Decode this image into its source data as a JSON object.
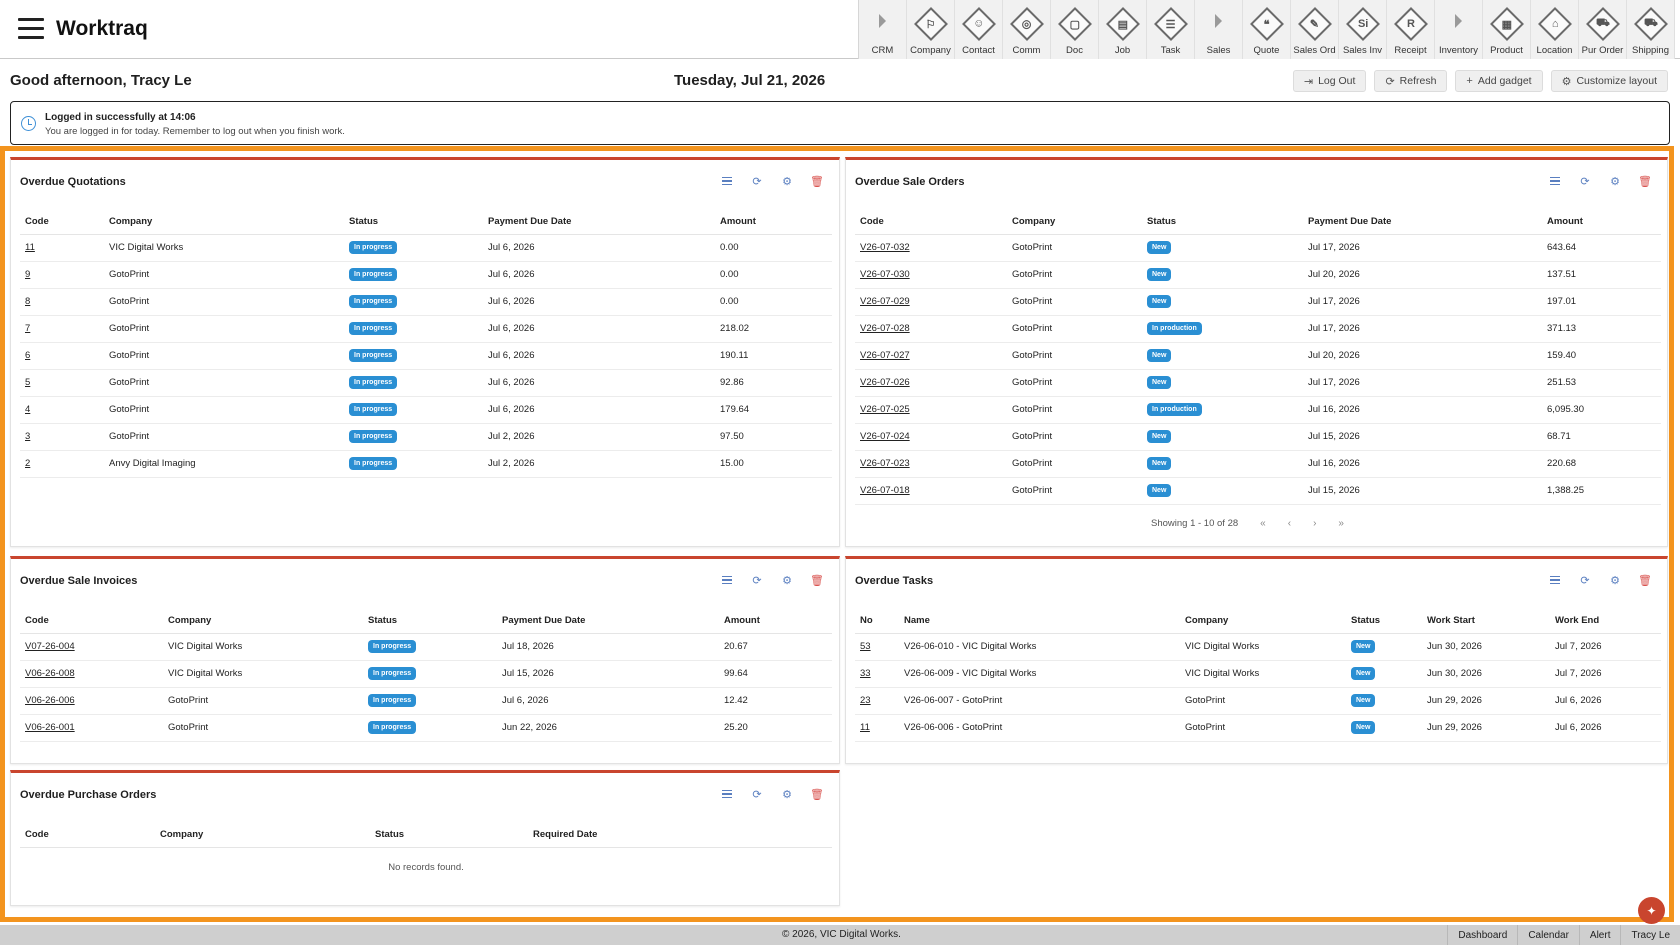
{
  "app": {
    "title": "Worktraq"
  },
  "modules": [
    {
      "label": "CRM",
      "icon": "chevron-right-icon",
      "section": true,
      "glyph": ""
    },
    {
      "label": "Company",
      "icon": "company-icon",
      "section": false,
      "glyph": "⚐"
    },
    {
      "label": "Contact",
      "icon": "contact-icon",
      "section": false,
      "glyph": "☺"
    },
    {
      "label": "Comm",
      "icon": "globe-icon",
      "section": false,
      "glyph": "◎"
    },
    {
      "label": "Doc",
      "icon": "document-icon",
      "section": false,
      "glyph": "▢"
    },
    {
      "label": "Job",
      "icon": "job-icon",
      "section": false,
      "glyph": "▤"
    },
    {
      "label": "Task",
      "icon": "task-icon",
      "section": false,
      "glyph": "☰"
    },
    {
      "label": "Sales",
      "icon": "chevron-right-icon",
      "section": true,
      "glyph": ""
    },
    {
      "label": "Quote",
      "icon": "quote-icon",
      "section": false,
      "glyph": "❝"
    },
    {
      "label": "Sales Ord",
      "icon": "sales-order-icon",
      "section": false,
      "glyph": "✎"
    },
    {
      "label": "Sales Inv",
      "icon": "sales-invoice-icon",
      "section": false,
      "glyph": "Si"
    },
    {
      "label": "Receipt",
      "icon": "receipt-icon",
      "section": false,
      "glyph": "R"
    },
    {
      "label": "Inventory",
      "icon": "chevron-right-icon",
      "section": true,
      "glyph": ""
    },
    {
      "label": "Product",
      "icon": "product-icon",
      "section": false,
      "glyph": "▦"
    },
    {
      "label": "Location",
      "icon": "location-icon",
      "section": false,
      "glyph": "⌂"
    },
    {
      "label": "Pur Order",
      "icon": "cart-icon",
      "section": false,
      "glyph": "⛟"
    },
    {
      "label": "Shipping",
      "icon": "shipping-icon",
      "section": false,
      "glyph": "⛟"
    }
  ],
  "greeting": "Good afternoon, Tracy Le",
  "date": "Tuesday, Jul 21, 2026",
  "toolbar": {
    "logout": "Log Out",
    "refresh": "Refresh",
    "add_gadget": "Add gadget",
    "customize": "Customize layout"
  },
  "notice": {
    "title": "Logged in successfully at 14:06",
    "body": "You are logged in for today. Remember to log out when you finish work."
  },
  "quotations": {
    "title": "Overdue Quotations",
    "columns": [
      "Code",
      "Company",
      "Status",
      "Payment Due Date",
      "Amount"
    ],
    "rows": [
      [
        "11",
        "VIC Digital Works",
        "In progress",
        "Jul 6, 2026",
        "0.00"
      ],
      [
        "9",
        "GotoPrint",
        "In progress",
        "Jul 6, 2026",
        "0.00"
      ],
      [
        "8",
        "GotoPrint",
        "In progress",
        "Jul 6, 2026",
        "0.00"
      ],
      [
        "7",
        "GotoPrint",
        "In progress",
        "Jul 6, 2026",
        "218.02"
      ],
      [
        "6",
        "GotoPrint",
        "In progress",
        "Jul 6, 2026",
        "190.11"
      ],
      [
        "5",
        "GotoPrint",
        "In progress",
        "Jul 6, 2026",
        "92.86"
      ],
      [
        "4",
        "GotoPrint",
        "In progress",
        "Jul 6, 2026",
        "179.64"
      ],
      [
        "3",
        "GotoPrint",
        "In progress",
        "Jul 2, 2026",
        "97.50"
      ],
      [
        "2",
        "Anvy Digital Imaging",
        "In progress",
        "Jul 2, 2026",
        "15.00"
      ]
    ]
  },
  "sale_orders": {
    "title": "Overdue Sale Orders",
    "columns": [
      "Code",
      "Company",
      "Status",
      "Payment Due Date",
      "Amount"
    ],
    "rows": [
      [
        "V26-07-032",
        "GotoPrint",
        "New",
        "Jul 17, 2026",
        "643.64"
      ],
      [
        "V26-07-030",
        "GotoPrint",
        "New",
        "Jul 20, 2026",
        "137.51"
      ],
      [
        "V26-07-029",
        "GotoPrint",
        "New",
        "Jul 17, 2026",
        "197.01"
      ],
      [
        "V26-07-028",
        "GotoPrint",
        "In production",
        "Jul 17, 2026",
        "371.13"
      ],
      [
        "V26-07-027",
        "GotoPrint",
        "New",
        "Jul 20, 2026",
        "159.40"
      ],
      [
        "V26-07-026",
        "GotoPrint",
        "New",
        "Jul 17, 2026",
        "251.53"
      ],
      [
        "V26-07-025",
        "GotoPrint",
        "In production",
        "Jul 16, 2026",
        "6,095.30"
      ],
      [
        "V26-07-024",
        "GotoPrint",
        "New",
        "Jul 15, 2026",
        "68.71"
      ],
      [
        "V26-07-023",
        "GotoPrint",
        "New",
        "Jul 16, 2026",
        "220.68"
      ],
      [
        "V26-07-018",
        "GotoPrint",
        "New",
        "Jul 15, 2026",
        "1,388.25"
      ]
    ],
    "pager": {
      "text": "Showing 1 - 10 of 28",
      "first": "«",
      "prev": "‹",
      "next": "›",
      "last": "»"
    }
  },
  "sale_invoices": {
    "title": "Overdue Sale Invoices",
    "columns": [
      "Code",
      "Company",
      "Status",
      "Payment Due Date",
      "Amount"
    ],
    "rows": [
      [
        "V07-26-004",
        "VIC Digital Works",
        "In progress",
        "Jul 18, 2026",
        "20.67"
      ],
      [
        "V06-26-008",
        "VIC Digital Works",
        "In progress",
        "Jul 15, 2026",
        "99.64"
      ],
      [
        "V06-26-006",
        "GotoPrint",
        "In progress",
        "Jul 6, 2026",
        "12.42"
      ],
      [
        "V06-26-001",
        "GotoPrint",
        "In progress",
        "Jun 22, 2026",
        "25.20"
      ]
    ]
  },
  "tasks": {
    "title": "Overdue Tasks",
    "columns": [
      "No",
      "Name",
      "Company",
      "Status",
      "Work Start",
      "Work End"
    ],
    "rows": [
      [
        "53",
        "V26-06-010 - VIC Digital Works",
        "VIC Digital Works",
        "New",
        "Jun 30, 2026",
        "Jul 7, 2026"
      ],
      [
        "33",
        "V26-06-009 - VIC Digital Works",
        "VIC Digital Works",
        "New",
        "Jun 30, 2026",
        "Jul 7, 2026"
      ],
      [
        "23",
        "V26-06-007 - GotoPrint",
        "GotoPrint",
        "New",
        "Jun 29, 2026",
        "Jul 6, 2026"
      ],
      [
        "11",
        "V26-06-006 - GotoPrint",
        "GotoPrint",
        "New",
        "Jun 29, 2026",
        "Jul 6, 2026"
      ]
    ]
  },
  "purchase_orders": {
    "title": "Overdue Purchase Orders",
    "columns": [
      "Code",
      "Company",
      "Status",
      "Required Date"
    ],
    "empty": "No records found."
  },
  "footer": {
    "copyright": "© 2026, VIC Digital Works.",
    "links": [
      "Dashboard",
      "Calendar",
      "Alert",
      "Tracy Le"
    ]
  },
  "colors": {
    "accent": "#f3941e",
    "panel_border": "#c9452e",
    "badge": "#2a8fd3"
  }
}
